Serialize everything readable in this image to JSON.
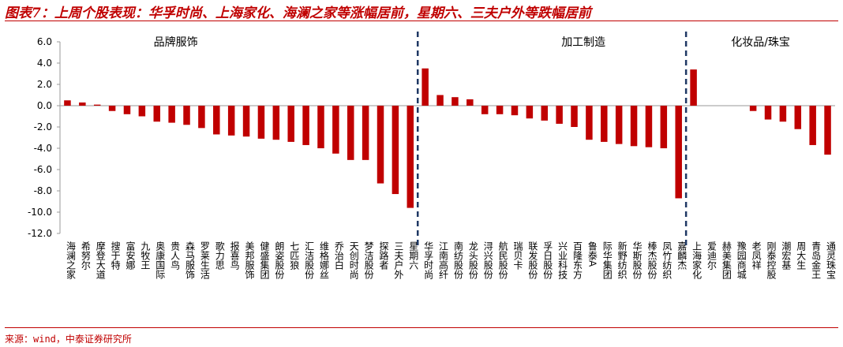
{
  "title": "图表7：上周个股表现：华孚时尚、上海家化、海澜之家等涨幅居前，星期六、三夫户外等跌幅居前",
  "source": "来源：wind，中泰证券研究所",
  "colors": {
    "bar": "#c00000",
    "divider": "#1f3864",
    "axis": "#999999",
    "title": "#c00000"
  },
  "chart_data": {
    "type": "bar",
    "ylim": [
      -12,
      6
    ],
    "yticks": [
      "6.0",
      "4.0",
      "2.0",
      "0.0",
      "-2.0",
      "-4.0",
      "-6.0",
      "-8.0",
      "-10.0",
      "-12.0"
    ],
    "grid": false,
    "groups": [
      {
        "label": "品牌服饰",
        "categories": [
          "海澜之家",
          "希努尔",
          "摩登大道",
          "搜于特",
          "富安娜",
          "九牧王",
          "奥康国际",
          "贵人鸟",
          "森马服饰",
          "罗莱生活",
          "歌力思",
          "报喜鸟",
          "美邦服饰",
          "健盛集团",
          "朗姿股份",
          "七匹狼",
          "汇洁股份",
          "维格娜丝",
          "乔治白",
          "天创时尚",
          "梦洁股份",
          "探路者",
          "三夫户外",
          "星期六"
        ],
        "values": [
          0.5,
          0.3,
          0.1,
          -0.5,
          -0.8,
          -1.0,
          -1.5,
          -1.6,
          -1.8,
          -2.1,
          -2.7,
          -2.8,
          -2.9,
          -3.1,
          -3.2,
          -3.4,
          -3.7,
          -4.0,
          -4.5,
          -5.1,
          -5.1,
          -7.3,
          -8.3,
          -9.6
        ]
      },
      {
        "label": "加工制造",
        "categories": [
          "华孚时尚",
          "江南高纤",
          "南纺股份",
          "龙头股份",
          "浔兴股份",
          "航民股份",
          "瑞贝卡",
          "联发股份",
          "孚日股份",
          "兴业科技",
          "百隆东方",
          "鲁泰A",
          "际华集团",
          "新野纺织",
          "华斯股份",
          "棒杰股份",
          "凤竹纺织",
          "嘉麟杰"
        ],
        "values": [
          3.5,
          1.0,
          0.8,
          0.6,
          -0.8,
          -0.8,
          -0.9,
          -1.2,
          -1.4,
          -1.7,
          -2.0,
          -3.2,
          -3.4,
          -3.6,
          -3.8,
          -3.9,
          -4.0,
          -8.7
        ]
      },
      {
        "label": "化妆品/珠宝",
        "categories": [
          "上海家化",
          "爱迪尔",
          "赫美集团",
          "豫园商城",
          "老凤祥",
          "刚泰控股",
          "潮宏基",
          "周大生",
          "青岛金王",
          "通灵珠宝"
        ],
        "values": [
          3.4,
          0.0,
          0.0,
          0.0,
          -0.5,
          -1.3,
          -1.5,
          -2.2,
          -3.7,
          -4.6
        ]
      }
    ]
  }
}
